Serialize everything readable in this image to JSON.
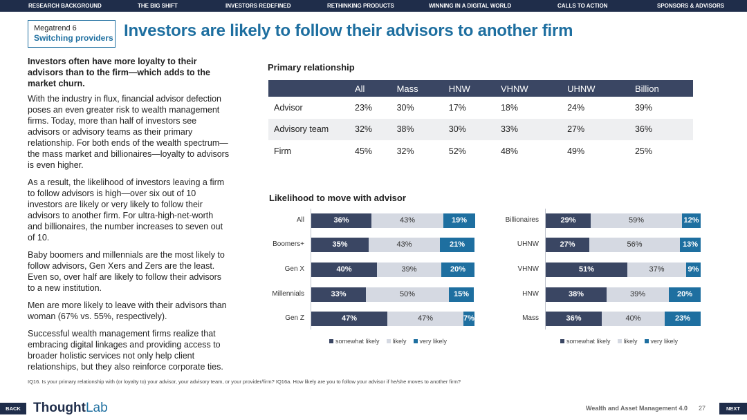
{
  "nav": {
    "items": [
      {
        "label": "RESEARCH BACKGROUND"
      },
      {
        "label": "THE BIG SHIFT"
      },
      {
        "label": "INVESTORS REDEFINED"
      },
      {
        "label": "RETHINKING PRODUCTS"
      },
      {
        "label": "WINNING IN A DIGITAL WORLD"
      },
      {
        "label": "CALLS TO ACTION"
      },
      {
        "label": "SPONSORS & ADVISORS"
      }
    ]
  },
  "header": {
    "megatrend": "Megatrend 6",
    "megatrend_name": "Switching providers",
    "title": "Investors are likely to follow their advisors to another firm"
  },
  "body": {
    "lead": "Investors often have more loyalty to their advisors than to the firm—which adds to the market churn.",
    "paragraphs": [
      "With the industry in flux, financial advisor defection poses an even greater risk to wealth management firms. Today, more than half of investors see advisors or advisory teams as their primary relationship. For both ends of the wealth spectrum—the mass market and billionaires—loyalty to advisors is even higher.",
      "As a result, the likelihood of investors leaving a firm to follow advisors is high—over six out of 10 investors are likely or very likely to follow their advisors to another firm. For ultra-high-net-worth and billionaires, the number increases to seven out of 10.",
      "Baby boomers and millennials are the most likely to follow advisors, Gen Xers and Zers are the least. Even so, over half are likely to follow their advisors to a new institution.",
      "Men are more likely to leave with their advisors than woman (67% vs. 55%, respectively).",
      "Successful wealth management firms realize that embracing digital linkages and providing access to broader holistic services not only help client relationships, but they also reinforce corporate ties."
    ]
  },
  "primary": {
    "title": "Primary relationship",
    "headers": [
      "",
      "All",
      "Mass",
      "HNW",
      "VHNW",
      "UHNW",
      "Billion"
    ],
    "rows": [
      [
        "Advisor",
        "23%",
        "30%",
        "17%",
        "18%",
        "24%",
        "39%"
      ],
      [
        "Advisory team",
        "32%",
        "38%",
        "30%",
        "33%",
        "27%",
        "36%"
      ],
      [
        "Firm",
        "45%",
        "32%",
        "52%",
        "48%",
        "49%",
        "25%"
      ]
    ]
  },
  "likelihood": {
    "title": "Likelihood to move with advisor"
  },
  "chart_data": [
    {
      "type": "bar",
      "orientation": "horizontal",
      "stacked": true,
      "title": "Likelihood to move with advisor — by generation",
      "categories": [
        "All",
        "Boomers+",
        "Gen X",
        "Millennials",
        "Gen Z"
      ],
      "series": [
        {
          "name": "somewhat likely",
          "values": [
            36,
            35,
            40,
            33,
            47
          ],
          "labels": [
            "36%",
            "35%",
            "40%",
            "33%",
            "47%"
          ]
        },
        {
          "name": "likely",
          "values": [
            43,
            43,
            39,
            50,
            47
          ],
          "labels": [
            "43%",
            "43%",
            "39%",
            "50%",
            "47%"
          ]
        },
        {
          "name": "very likely",
          "values": [
            19,
            21,
            20,
            15,
            7
          ],
          "labels": [
            "19%",
            "21%",
            "20%",
            "15%",
            "7%"
          ]
        }
      ],
      "xlim": [
        0,
        100
      ],
      "legend": [
        "somewhat likely",
        "likely",
        "very likely"
      ],
      "legend_position": "bottom"
    },
    {
      "type": "bar",
      "orientation": "horizontal",
      "stacked": true,
      "title": "Likelihood to move with advisor — by wealth",
      "categories": [
        "Billionaires",
        "UHNW",
        "VHNW",
        "HNW",
        "Mass"
      ],
      "series": [
        {
          "name": "somewhat likely",
          "values": [
            29,
            27,
            51,
            38,
            36
          ],
          "labels": [
            "29%",
            "27%",
            "51%",
            "38%",
            "36%"
          ]
        },
        {
          "name": "likely",
          "values": [
            59,
            56,
            37,
            39,
            40
          ],
          "labels": [
            "59%",
            "56%",
            "37%",
            "39%",
            "40%"
          ]
        },
        {
          "name": "very likely",
          "values": [
            12,
            13,
            9,
            20,
            23
          ],
          "labels": [
            "12%",
            "13%",
            "9%",
            "20%",
            "23%"
          ]
        }
      ],
      "xlim": [
        0,
        100
      ],
      "legend": [
        "somewhat likely",
        "likely",
        "very likely"
      ],
      "legend_position": "bottom"
    }
  ],
  "colors": {
    "somewhat": "#3a4663",
    "likely": "#d5d9e2",
    "very": "#1e6fa0"
  },
  "footnote": "IQ16. Is your primary relationship with (or loyalty to) your advisor, your advisory team, or your provider/firm?  IQ16a. How likely are you to follow your advisor if he/she moves to another firm?",
  "footer": {
    "back": "BACK",
    "next": "NEXT",
    "logo_a": "Thought",
    "logo_b": "Lab",
    "title": "Wealth and Asset Management 4.0",
    "page": "27"
  }
}
